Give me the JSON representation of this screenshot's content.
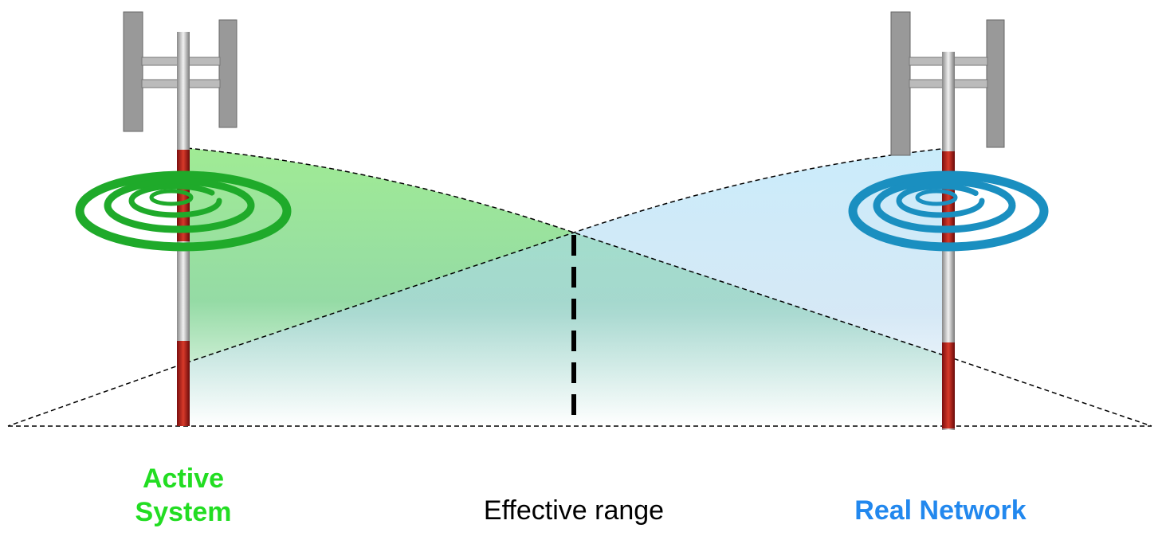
{
  "labels": {
    "left": "Active System",
    "center": "Effective range",
    "right": "Real Network"
  }
}
